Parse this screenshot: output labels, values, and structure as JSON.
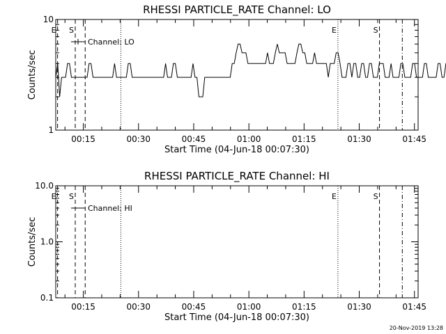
{
  "footer_timestamp": "20-Nov-2019 13:28",
  "markers": [
    {
      "label": "E",
      "x": 8.0,
      "style": "dashed"
    },
    {
      "label": "S",
      "x": 12.8,
      "style": "dashed"
    },
    {
      "label": "",
      "x": 15.5,
      "style": "dashed"
    },
    {
      "label": "",
      "x": 25.2,
      "style": "dotted"
    },
    {
      "label": "E",
      "x": 84.2,
      "style": "dotted"
    },
    {
      "label": "S",
      "x": 95.5,
      "style": "dashed"
    },
    {
      "label": "",
      "x": 101.7,
      "style": "dashdot"
    }
  ],
  "chart_data": [
    {
      "type": "line",
      "title": "RHESSI PARTICLE_RATE Channel: LO",
      "xlabel": "Start Time (04-Jun-18 00:07:30)",
      "ylabel": "Counts/sec",
      "yscale": "log",
      "xlim": [
        7.5,
        106
      ],
      "ylim": [
        1,
        10
      ],
      "x_tick_values": [
        15,
        30,
        45,
        60,
        75,
        90,
        105
      ],
      "x_tick_labels": [
        "00:15",
        "00:30",
        "00:45",
        "01:00",
        "01:15",
        "01:30",
        "01:45"
      ],
      "y_tick_values": [
        1,
        10
      ],
      "y_tick_labels": [
        "1",
        "10"
      ],
      "legend": "top-left",
      "series": [
        {
          "name": "Channel: LO",
          "x_start": 7.5,
          "x_step": 0.533,
          "values": [
            3,
            4,
            2,
            3,
            3,
            3,
            4,
            4,
            3,
            3,
            3,
            3,
            3,
            3,
            3,
            3,
            3,
            4,
            4,
            3,
            3,
            3,
            3,
            3,
            3,
            3,
            3,
            3,
            3,
            3,
            4,
            3,
            3,
            3,
            3,
            3,
            3,
            4,
            4,
            3,
            3,
            3,
            3,
            3,
            3,
            3,
            3,
            3,
            3,
            3,
            3,
            3,
            3,
            3,
            3,
            3,
            4,
            3,
            3,
            3,
            4,
            4,
            3,
            3,
            3,
            3,
            3,
            3,
            3,
            3,
            4,
            3,
            3,
            2,
            2,
            2,
            3,
            3,
            3,
            3,
            3,
            3,
            3,
            3,
            3,
            3,
            3,
            3,
            3,
            3,
            4,
            4,
            5,
            6,
            6,
            5,
            5,
            5,
            4,
            4,
            4,
            4,
            4,
            4,
            4,
            4,
            4,
            4,
            5,
            4,
            4,
            4,
            5,
            6,
            5,
            5,
            5,
            5,
            4,
            4,
            4,
            4,
            4,
            5,
            6,
            6,
            5,
            5,
            4,
            4,
            4,
            4,
            5,
            4,
            4,
            4,
            4,
            4,
            4,
            3,
            4,
            4,
            4,
            5,
            5,
            4,
            3,
            3,
            3,
            4,
            4,
            3,
            4,
            4,
            3,
            3,
            4,
            4,
            3,
            3,
            4,
            4,
            3,
            3,
            3,
            4,
            4,
            4,
            3,
            3,
            3,
            4,
            3,
            3,
            3,
            3,
            4,
            4,
            3,
            3,
            3,
            3,
            4,
            4,
            3,
            3,
            3,
            3,
            4,
            4,
            3,
            3,
            3,
            3,
            3,
            4,
            4,
            3,
            3,
            4,
            4,
            4,
            3,
            3,
            4,
            4,
            4,
            4,
            5,
            4,
            4,
            4,
            5,
            5,
            4,
            4,
            4,
            4,
            4,
            4,
            4,
            4,
            4,
            4,
            5,
            5,
            4,
            4,
            4,
            4,
            4,
            4,
            5,
            4,
            4,
            4,
            4,
            4,
            4,
            4,
            4,
            4,
            4,
            5,
            5,
            5,
            6,
            5,
            5,
            5,
            4,
            4,
            4,
            4,
            4,
            4,
            4,
            4,
            4,
            4,
            4,
            4,
            4,
            5,
            5,
            4,
            4,
            4,
            4,
            4,
            4,
            5,
            5,
            4,
            4,
            4,
            4,
            4,
            3,
            3,
            4,
            3,
            3,
            3,
            3,
            3,
            3,
            3,
            4,
            4,
            3,
            3,
            3,
            3,
            3,
            3,
            3,
            3,
            2,
            2,
            3,
            3,
            3,
            3,
            3,
            3,
            4,
            3,
            3,
            3,
            4,
            3,
            3,
            3,
            4,
            4,
            3,
            3,
            3,
            3,
            3,
            4,
            4,
            3,
            3,
            4,
            3,
            3,
            3,
            4,
            4,
            3,
            3,
            3,
            4,
            4,
            3,
            3,
            3,
            3,
            4
          ]
        }
      ]
    },
    {
      "type": "line",
      "title": "RHESSI PARTICLE_RATE Channel: HI",
      "xlabel": "Start Time (04-Jun-18 00:07:30)",
      "ylabel": "Counts/sec",
      "yscale": "log",
      "xlim": [
        7.5,
        106
      ],
      "ylim": [
        0.1,
        10
      ],
      "x_tick_values": [
        15,
        30,
        45,
        60,
        75,
        90,
        105
      ],
      "x_tick_labels": [
        "00:15",
        "00:30",
        "00:45",
        "01:00",
        "01:15",
        "01:30",
        "01:45"
      ],
      "y_tick_values": [
        0.1,
        1,
        10
      ],
      "y_tick_labels": [
        "0.1",
        "1.0",
        "10.0"
      ],
      "legend": "top-left",
      "series": [
        {
          "name": "Channel: HI",
          "x_start": 7.5,
          "x_step": 0.533,
          "values": []
        }
      ]
    }
  ]
}
